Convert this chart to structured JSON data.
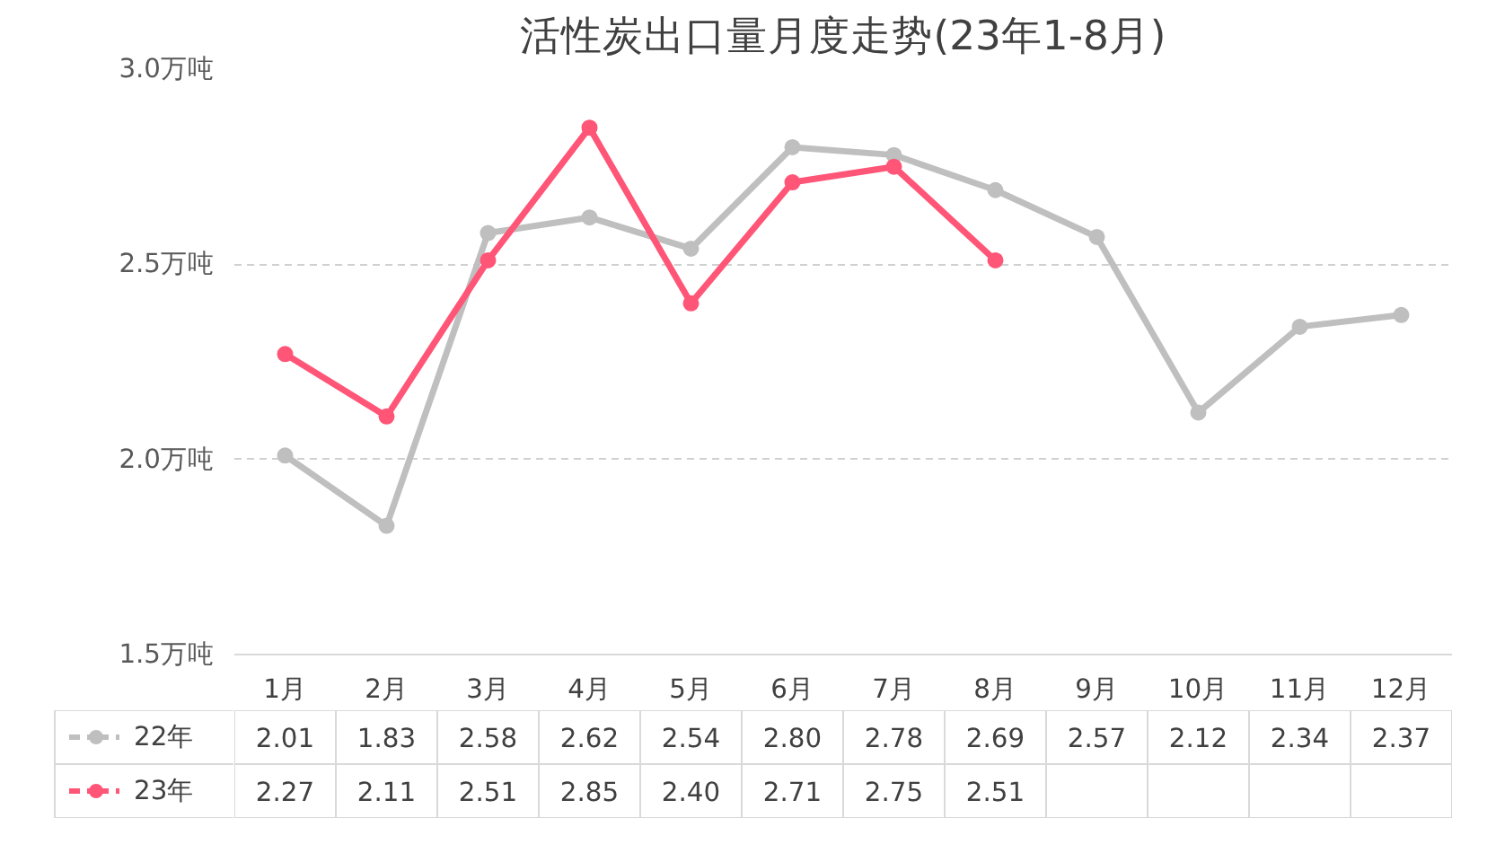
{
  "chart_data": {
    "type": "line",
    "title": "活性炭出口量月度走势(23年1-8月)",
    "categories": [
      "1月",
      "2月",
      "3月",
      "4月",
      "5月",
      "6月",
      "7月",
      "8月",
      "9月",
      "10月",
      "11月",
      "12月"
    ],
    "series": [
      {
        "name": "22年",
        "color": "#bfbfbf",
        "values": [
          2.01,
          1.83,
          2.58,
          2.62,
          2.54,
          2.8,
          2.78,
          2.69,
          2.57,
          2.12,
          2.34,
          2.37
        ],
        "value_labels": [
          "2.01",
          "1.83",
          "2.58",
          "2.62",
          "2.54",
          "2.80",
          "2.78",
          "2.69",
          "2.57",
          "2.12",
          "2.34",
          "2.37"
        ]
      },
      {
        "name": "23年",
        "color": "#ff5577",
        "values": [
          2.27,
          2.11,
          2.51,
          2.85,
          2.4,
          2.71,
          2.75,
          2.51,
          null,
          null,
          null,
          null
        ],
        "value_labels": [
          "2.27",
          "2.11",
          "2.51",
          "2.85",
          "2.40",
          "2.71",
          "2.75",
          "2.51",
          null,
          null,
          null,
          null
        ]
      }
    ],
    "ylim": [
      1.5,
      3.0
    ],
    "yticks": [
      {
        "value": 1.5,
        "label": "1.5万吨"
      },
      {
        "value": 2.0,
        "label": "2.0万吨"
      },
      {
        "value": 2.5,
        "label": "2.5万吨"
      },
      {
        "value": 3.0,
        "label": "3.0万吨"
      }
    ],
    "grid": "y",
    "legend": "bottom",
    "marker": "circle",
    "line_style": "solid",
    "data_labels": true
  }
}
